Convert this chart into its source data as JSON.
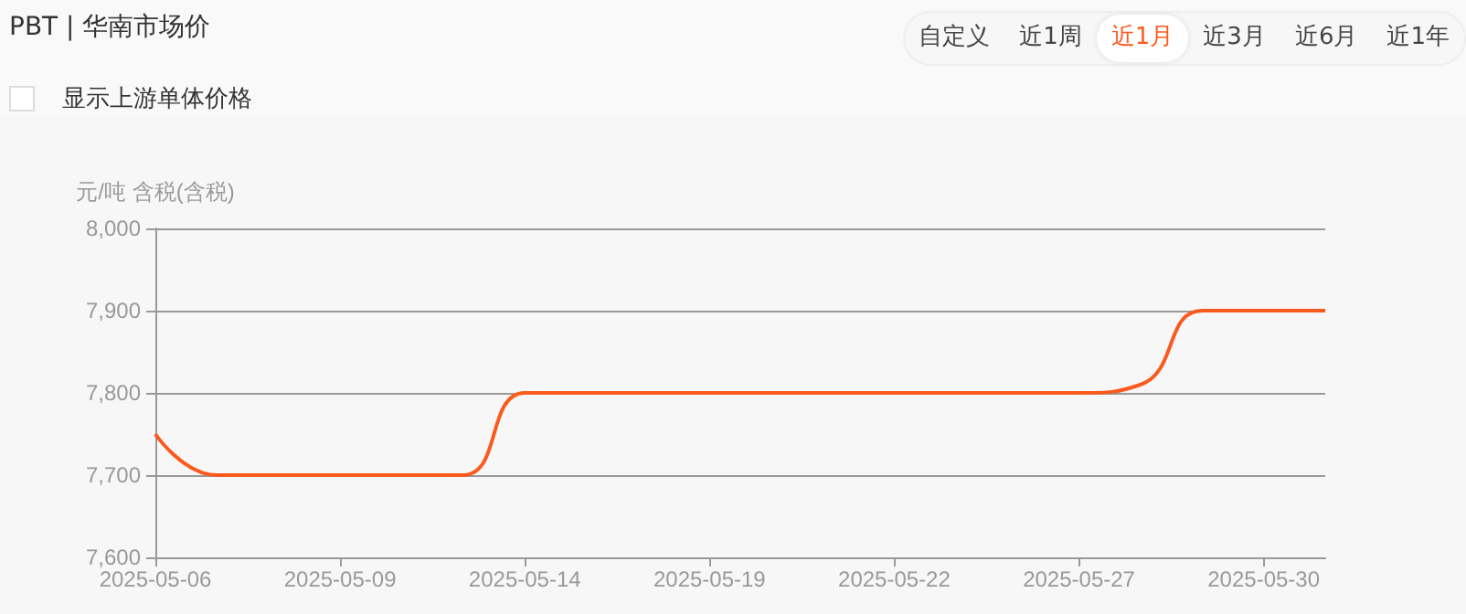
{
  "chart_data": {
    "type": "line",
    "title": "PBT | 华南市场价",
    "ylabel": "元/吨 含税(含税)",
    "annotations": [
      "自定义",
      "近1周",
      "近1月",
      "近3月",
      "近6月",
      "近1年",
      "显示上游单体价格"
    ],
    "categories": [
      "2025-05-06",
      null,
      null,
      "2025-05-09",
      null,
      null,
      "2025-05-14",
      null,
      null,
      "2025-05-19",
      null,
      null,
      "2025-05-22",
      null,
      null,
      "2025-05-27",
      null,
      null,
      "2025-05-30",
      null
    ],
    "series": [
      {
        "color": "#fb5a1e",
        "values": [
          7750,
          7700,
          7700,
          7700,
          7700,
          7700,
          7800,
          7800,
          7800,
          7800,
          7800,
          7800,
          7800,
          7800,
          7800,
          7800,
          7810,
          7900,
          7900,
          7900
        ]
      }
    ],
    "ylim": [
      7600,
      8000
    ],
    "yticks": [
      {
        "value": 7600,
        "label": "7,600"
      },
      {
        "value": 7700,
        "label": "7,700"
      },
      {
        "value": 7800,
        "label": "7,800"
      },
      {
        "value": 7900,
        "label": "7,900"
      },
      {
        "value": 8000,
        "label": "8,000"
      }
    ],
    "grid": "y",
    "marker": "none",
    "line_style": "solid"
  }
}
